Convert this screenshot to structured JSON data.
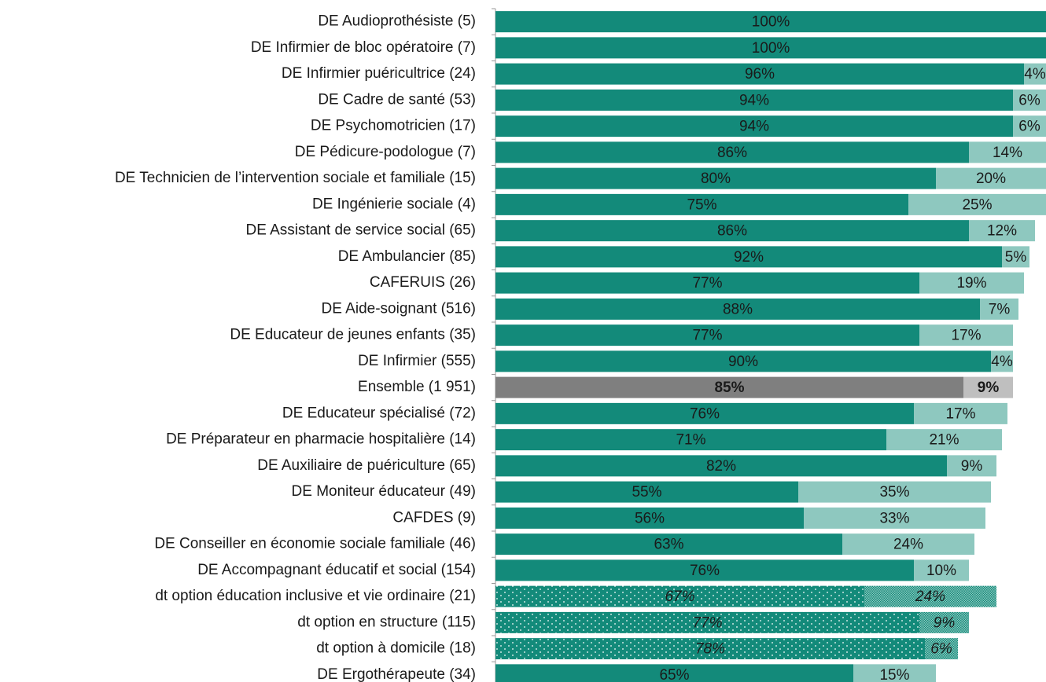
{
  "chart_data": {
    "type": "stacked_barh",
    "categories": [
      "DE Audioprothésiste (5)",
      "DE Infirmier de bloc opératoire (7)",
      "DE Infirmier puéricultrice (24)",
      "DE Cadre de santé (53)",
      "DE Psychomotricien (17)",
      "DE Pédicure-podologue (7)",
      "DE Technicien de l’intervention sociale et familiale (15)",
      "DE Ingénierie sociale (4)",
      "DE Assistant de service social (65)",
      "DE Ambulancier (85)",
      "CAFERUIS (26)",
      "DE Aide-soignant (516)",
      "DE Educateur de jeunes enfants (35)",
      "DE Infirmier (555)",
      "Ensemble (1 951)",
      "DE Educateur spécialisé (72)",
      "DE Préparateur en pharmacie hospitalière (14)",
      "DE Auxiliaire de puériculture (65)",
      "DE Moniteur éducateur (49)",
      "CAFDES (9)",
      "DE Conseiller en économie sociale familiale (46)",
      "DE Accompagnant éducatif et social (154)",
      "dt option éducation inclusive et vie ordinaire (21)",
      "dt option en structure (115)",
      "dt option à domicile (18)",
      "DE Ergothérapeute (34)"
    ],
    "series": [
      {
        "color": "#138a7a",
        "highlight_color": "#7f7f7f",
        "values": [
          100,
          100,
          96,
          94,
          94,
          86,
          80,
          75,
          86,
          92,
          77,
          88,
          77,
          90,
          85,
          76,
          71,
          82,
          55,
          56,
          63,
          76,
          67,
          77,
          78,
          65
        ],
        "value_labels": [
          "100%",
          "100%",
          "96%",
          "94%",
          "94%",
          "86%",
          "80%",
          "75%",
          "86%",
          "92%",
          "77%",
          "88%",
          "77%",
          "90%",
          "85%",
          "76%",
          "71%",
          "82%",
          "55%",
          "56%",
          "63%",
          "76%",
          "67%",
          "77%",
          "78%",
          "65%"
        ]
      },
      {
        "color": "#8ec8bf",
        "highlight_color": "#bfbfbf",
        "values": [
          0,
          0,
          4,
          6,
          6,
          14,
          20,
          25,
          12,
          5,
          19,
          7,
          17,
          4,
          9,
          17,
          21,
          9,
          35,
          33,
          24,
          10,
          24,
          9,
          6,
          15
        ],
        "value_labels": [
          null,
          null,
          "4%",
          "6%",
          "6%",
          "14%",
          "20%",
          "25%",
          "12%",
          "5%",
          "19%",
          "7%",
          "17%",
          "4%",
          "9%",
          "17%",
          "21%",
          "9%",
          "35%",
          "33%",
          "24%",
          "10%",
          "24%",
          "9%",
          "6%",
          "15%"
        ]
      }
    ],
    "highlight": [
      14
    ],
    "dotted": [
      22,
      23,
      24
    ],
    "xlim": [
      0,
      100
    ]
  }
}
